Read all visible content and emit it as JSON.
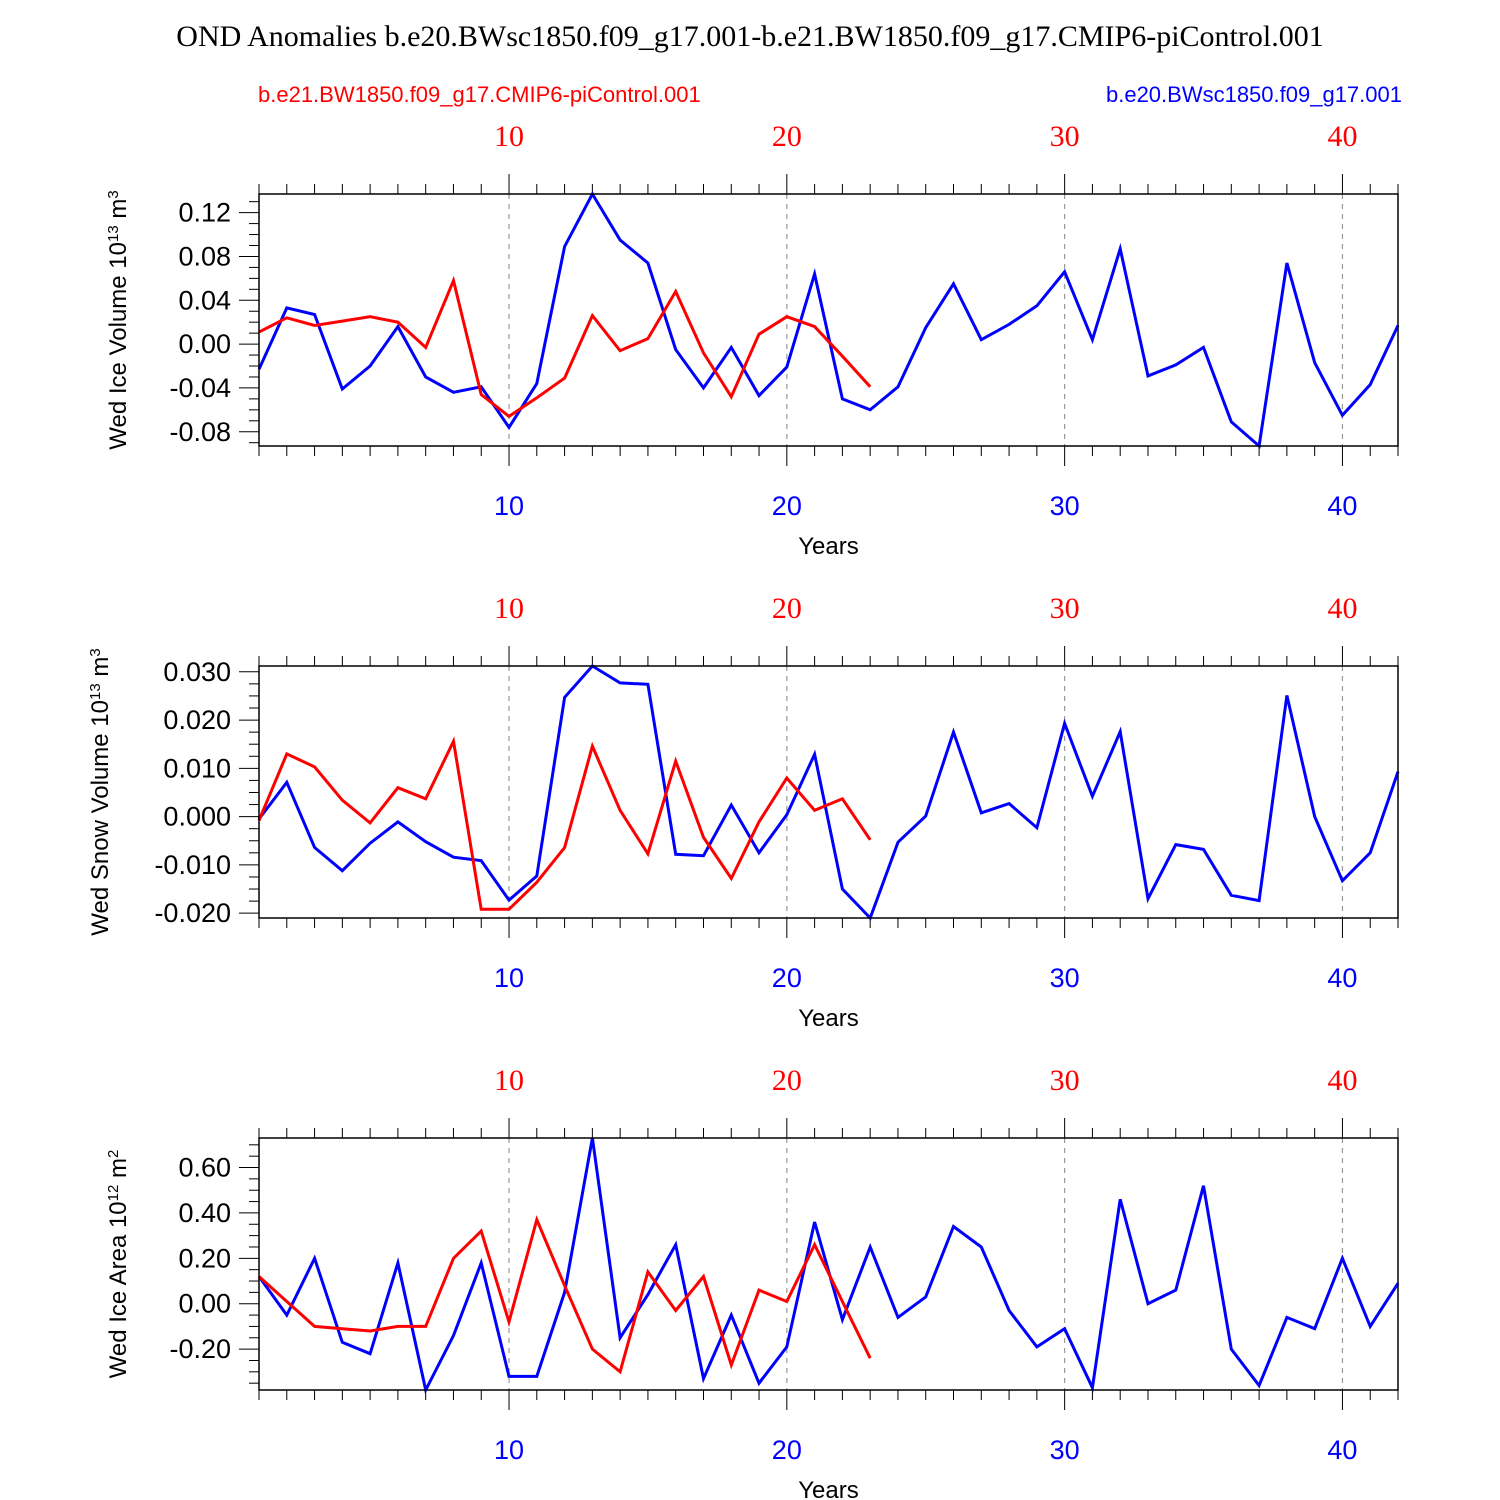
{
  "title": "OND Anomalies b.e20.BWsc1850.f09_g17.001-b.e21.BW1850.f09_g17.CMIP6-piControl.001",
  "legend": {
    "left_label": "b.e21.BW1850.f09_g17.CMIP6-piControl.001",
    "right_label": "b.e20.BWsc1850.f09_g17.001"
  },
  "colors": {
    "series_a": "#0000ff",
    "series_b": "#ff0000",
    "axis": "#000000",
    "grid": "#999999"
  },
  "chart_data": [
    {
      "type": "line",
      "ylabel": "Wed Ice Volume 10",
      "ylabel_exp": "13",
      "ylabel_unit": " m",
      "ylabel_unit_exp": "3",
      "xlabel": "Years",
      "xlim": [
        1,
        42
      ],
      "ylim": [
        -0.093,
        0.137
      ],
      "x_ticks": [
        10,
        20,
        30,
        40
      ],
      "x_tick_labels": [
        "10",
        "20",
        "30",
        "40"
      ],
      "y_ticks": [
        -0.08,
        -0.04,
        0.0,
        0.04,
        0.08,
        0.12
      ],
      "y_tick_labels": [
        "-0.08",
        "-0.04",
        "0.00",
        "0.04",
        "0.08",
        "0.12"
      ],
      "grid": "vertical dashed at major x ticks",
      "series": [
        {
          "name": "b.e20.BWsc1850.f09_g17.001",
          "color": "#0000ff",
          "x": [
            1,
            2,
            3,
            4,
            5,
            6,
            7,
            8,
            9,
            10,
            11,
            12,
            13,
            14,
            15,
            16,
            17,
            18,
            19,
            20,
            21,
            22,
            23,
            24,
            25,
            26,
            27,
            28,
            29,
            30,
            31,
            32,
            33,
            34,
            35,
            36,
            37,
            38,
            39,
            40,
            41,
            42
          ],
          "values": [
            -0.023,
            0.033,
            0.027,
            -0.041,
            -0.02,
            0.016,
            -0.03,
            -0.044,
            -0.039,
            -0.076,
            -0.036,
            0.089,
            0.137,
            0.095,
            0.074,
            -0.005,
            -0.04,
            -0.003,
            -0.047,
            -0.021,
            0.064,
            -0.05,
            -0.06,
            -0.039,
            0.015,
            0.055,
            0.004,
            0.018,
            0.035,
            0.066,
            0.004,
            0.087,
            -0.029,
            -0.019,
            -0.003,
            -0.071,
            -0.093,
            0.074,
            -0.017,
            -0.065,
            -0.037,
            0.017
          ]
        },
        {
          "name": "b.e21.BW1850.f09_g17.CMIP6-piControl.001",
          "color": "#ff0000",
          "x": [
            1,
            2,
            3,
            4,
            5,
            6,
            7,
            8,
            9,
            10,
            11,
            12,
            13,
            14,
            15,
            16,
            17,
            18,
            19,
            20,
            21,
            22,
            23
          ],
          "values": [
            0.011,
            0.024,
            0.017,
            0.021,
            0.025,
            0.02,
            -0.003,
            0.058,
            -0.046,
            -0.066,
            -0.049,
            -0.031,
            0.026,
            -0.006,
            0.005,
            0.048,
            -0.008,
            -0.048,
            0.009,
            0.025,
            0.016,
            -0.011,
            -0.039
          ]
        }
      ]
    },
    {
      "type": "line",
      "ylabel": "Wed Snow Volume 10",
      "ylabel_exp": "13",
      "ylabel_unit": " m",
      "ylabel_unit_exp": "3",
      "xlabel": "Years",
      "xlim": [
        1,
        42
      ],
      "ylim": [
        -0.021,
        0.0312
      ],
      "x_ticks": [
        10,
        20,
        30,
        40
      ],
      "x_tick_labels": [
        "10",
        "20",
        "30",
        "40"
      ],
      "y_ticks": [
        -0.02,
        -0.01,
        0.0,
        0.01,
        0.02,
        0.03
      ],
      "y_tick_labels": [
        "-0.020",
        "-0.010",
        "0.000",
        "0.010",
        "0.020",
        "0.030"
      ],
      "grid": "vertical dashed at major x ticks",
      "series": [
        {
          "name": "b.e20.BWsc1850.f09_g17.001",
          "color": "#0000ff",
          "x": [
            1,
            2,
            3,
            4,
            5,
            6,
            7,
            8,
            9,
            10,
            11,
            12,
            13,
            14,
            15,
            16,
            17,
            18,
            19,
            20,
            21,
            22,
            23,
            24,
            25,
            26,
            27,
            28,
            29,
            30,
            31,
            32,
            33,
            34,
            35,
            36,
            37,
            38,
            39,
            40,
            41,
            42
          ],
          "values": [
            -0.0005,
            0.0071,
            -0.0064,
            -0.0112,
            -0.0055,
            -0.0011,
            -0.0052,
            -0.0084,
            -0.0091,
            -0.0173,
            -0.0123,
            0.0247,
            0.0312,
            0.0277,
            0.0274,
            -0.0078,
            -0.0081,
            0.0024,
            -0.0075,
            0.0004,
            0.0129,
            -0.015,
            -0.021,
            -0.0053,
            0.0001,
            0.0175,
            0.0008,
            0.0027,
            -0.0023,
            0.0193,
            0.0042,
            0.0176,
            -0.017,
            -0.0058,
            -0.0068,
            -0.0163,
            -0.0174,
            0.0251,
            0.0,
            -0.0133,
            -0.0075,
            0.0093
          ]
        },
        {
          "name": "b.e21.BW1850.f09_g17.CMIP6-piControl.001",
          "color": "#ff0000",
          "x": [
            1,
            2,
            3,
            4,
            5,
            6,
            7,
            8,
            9,
            10,
            11,
            12,
            13,
            14,
            15,
            16,
            17,
            18,
            19,
            20,
            21,
            22,
            23
          ],
          "values": [
            -0.0008,
            0.013,
            0.0103,
            0.0034,
            -0.0013,
            0.006,
            0.0037,
            0.0156,
            -0.0192,
            -0.0192,
            -0.0136,
            -0.0064,
            0.0146,
            0.0013,
            -0.0077,
            0.0115,
            -0.0043,
            -0.0128,
            -0.0011,
            0.008,
            0.0013,
            0.0037,
            -0.0048
          ]
        }
      ]
    },
    {
      "type": "line",
      "ylabel": "Wed Ice Area 10",
      "ylabel_exp": "12",
      "ylabel_unit": " m",
      "ylabel_unit_exp": "2",
      "xlabel": "Years",
      "xlim": [
        1,
        42
      ],
      "ylim": [
        -0.38,
        0.73
      ],
      "x_ticks": [
        10,
        20,
        30,
        40
      ],
      "x_tick_labels": [
        "10",
        "20",
        "30",
        "40"
      ],
      "y_ticks": [
        -0.2,
        0.0,
        0.2,
        0.4,
        0.6
      ],
      "y_tick_labels": [
        "-0.20",
        "0.00",
        "0.20",
        "0.40",
        "0.60"
      ],
      "grid": "vertical dashed at major x ticks",
      "series": [
        {
          "name": "b.e20.BWsc1850.f09_g17.001",
          "color": "#0000ff",
          "x": [
            1,
            2,
            3,
            4,
            5,
            6,
            7,
            8,
            9,
            10,
            11,
            12,
            13,
            14,
            15,
            16,
            17,
            18,
            19,
            20,
            21,
            22,
            23,
            24,
            25,
            26,
            27,
            28,
            29,
            30,
            31,
            32,
            33,
            34,
            35,
            36,
            37,
            38,
            39,
            40,
            41,
            42
          ],
          "values": [
            0.12,
            -0.05,
            0.2,
            -0.17,
            -0.22,
            0.18,
            -0.38,
            -0.14,
            0.18,
            -0.32,
            -0.32,
            0.05,
            0.73,
            -0.15,
            0.04,
            0.26,
            -0.33,
            -0.05,
            -0.35,
            -0.19,
            0.36,
            -0.07,
            0.25,
            -0.06,
            0.03,
            0.34,
            0.25,
            -0.03,
            -0.19,
            -0.11,
            -0.37,
            0.46,
            0.0,
            0.06,
            0.52,
            -0.2,
            -0.36,
            -0.06,
            -0.11,
            0.2,
            -0.1,
            0.09
          ]
        },
        {
          "name": "b.e21.BW1850.f09_g17.CMIP6-piControl.001",
          "color": "#ff0000",
          "x": [
            1,
            2,
            3,
            4,
            5,
            6,
            7,
            8,
            9,
            10,
            11,
            12,
            13,
            14,
            15,
            16,
            17,
            18,
            19,
            20,
            21,
            22,
            23
          ],
          "values": [
            0.12,
            0.01,
            -0.1,
            -0.11,
            -0.12,
            -0.1,
            -0.1,
            0.2,
            0.32,
            -0.08,
            0.37,
            0.08,
            -0.2,
            -0.3,
            0.14,
            -0.03,
            0.12,
            -0.27,
            0.06,
            0.01,
            0.26,
            0.01,
            -0.24
          ]
        }
      ]
    }
  ]
}
